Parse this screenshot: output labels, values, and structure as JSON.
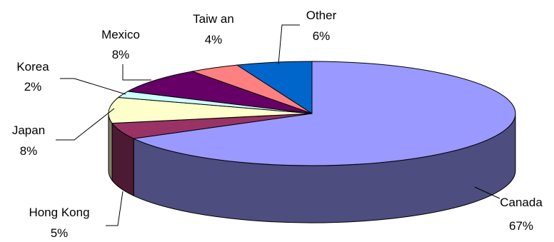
{
  "chart_data": {
    "type": "pie",
    "style": "3d-pie",
    "slices": [
      {
        "label": "Canada",
        "value_label": "67%",
        "value": 67,
        "color": "#9999FF",
        "side_color": "#4D4D80"
      },
      {
        "label": "Hong Kong",
        "value_label": "5%",
        "value": 5,
        "color": "#993366",
        "side_color": "#4D1A33"
      },
      {
        "label": "Japan",
        "value_label": "8%",
        "value": 8,
        "color": "#FFFFCC",
        "side_color": "#808066"
      },
      {
        "label": "Korea",
        "value_label": "2%",
        "value": 2,
        "color": "#CCFFFF",
        "side_color": "#668080"
      },
      {
        "label": "Mexico",
        "value_label": "8%",
        "value": 8,
        "color": "#660066",
        "side_color": "#330033"
      },
      {
        "label": "Taiw an",
        "value_label": "4%",
        "value": 4,
        "color": "#FF8080",
        "side_color": "#804040"
      },
      {
        "label": "Other",
        "value_label": "6%",
        "value": 6,
        "color": "#0066CC",
        "side_color": "#003366"
      }
    ]
  }
}
